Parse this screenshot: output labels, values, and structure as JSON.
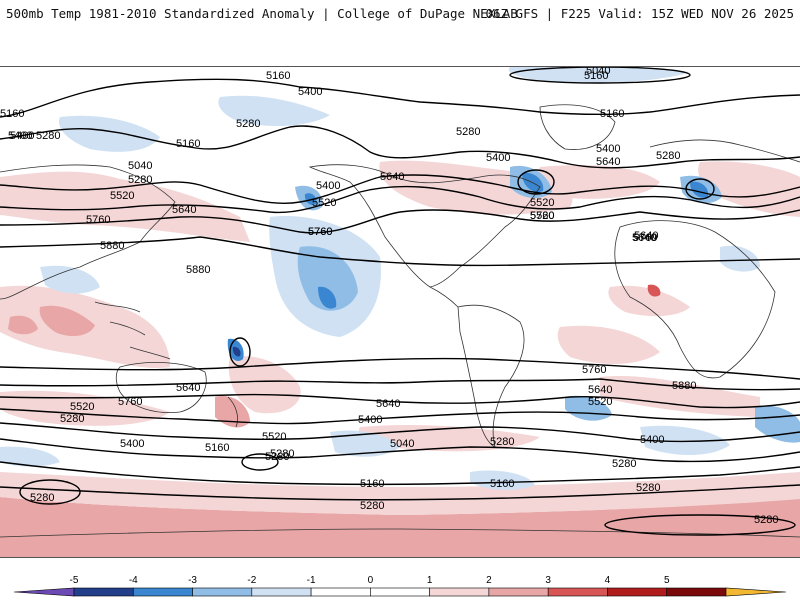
{
  "header": {
    "title": "500mb Temp 1981-2010 Standardized Anomaly | College of DuPage NEXLAB",
    "run_info": "06Z GFS | F225 Valid: 15Z WED NOV 26 2025"
  },
  "colors": {
    "strong_neg": "#6b4bb3",
    "neg4": "#223f8c",
    "neg3": "#3b86d1",
    "neg2": "#8fbde6",
    "neg1": "#cfe1f3",
    "neutral": "#ffffff",
    "pos1": "#f4d6d6",
    "pos2": "#e8a6a6",
    "pos3": "#d85555",
    "pos4": "#b01c1c",
    "pos5": "#7a0a0a",
    "strong_pos": "#f2b733",
    "contour": "#000000",
    "coast": "#333333"
  },
  "contour_labels": [
    {
      "text": "5160"
    },
    {
      "text": "5400"
    },
    {
      "text": "5280"
    },
    {
      "text": "5160"
    },
    {
      "text": "5400"
    },
    {
      "text": "5040"
    },
    {
      "text": "5280"
    },
    {
      "text": "5520"
    },
    {
      "text": "5640"
    },
    {
      "text": "5760"
    },
    {
      "text": "5880"
    },
    {
      "text": "5880"
    },
    {
      "text": "5160"
    },
    {
      "text": "5400"
    },
    {
      "text": "5520"
    },
    {
      "text": "5640"
    },
    {
      "text": "5760"
    },
    {
      "text": "5400"
    },
    {
      "text": "5280"
    },
    {
      "text": "5160"
    },
    {
      "text": "5040"
    },
    {
      "text": "5400"
    },
    {
      "text": "5640"
    },
    {
      "text": "5520"
    },
    {
      "text": "5760"
    },
    {
      "text": "5280"
    },
    {
      "text": "5160"
    },
    {
      "text": "5400"
    },
    {
      "text": "5640"
    },
    {
      "text": "5280"
    },
    {
      "text": "5760"
    },
    {
      "text": "5880"
    },
    {
      "text": "5760"
    },
    {
      "text": "5640"
    },
    {
      "text": "5520"
    },
    {
      "text": "5400"
    },
    {
      "text": "5280"
    },
    {
      "text": "5640"
    },
    {
      "text": "5760"
    },
    {
      "text": "5520"
    },
    {
      "text": "5280"
    },
    {
      "text": "5400"
    },
    {
      "text": "5160"
    },
    {
      "text": "5280"
    },
    {
      "text": "5640"
    },
    {
      "text": "5520"
    },
    {
      "text": "5400"
    },
    {
      "text": "5280"
    },
    {
      "text": "5040"
    },
    {
      "text": "5280"
    },
    {
      "text": "5160"
    },
    {
      "text": "5160"
    },
    {
      "text": "5280"
    },
    {
      "text": "5280"
    },
    {
      "text": "5280"
    },
    {
      "text": "5760"
    },
    {
      "text": "5640"
    },
    {
      "text": "5520"
    },
    {
      "text": "5280"
    }
  ],
  "colorbar": {
    "ticks": [
      "-5",
      "-4",
      "-3",
      "-2",
      "-1",
      "0",
      "1",
      "2",
      "3",
      "4",
      "5"
    ]
  }
}
